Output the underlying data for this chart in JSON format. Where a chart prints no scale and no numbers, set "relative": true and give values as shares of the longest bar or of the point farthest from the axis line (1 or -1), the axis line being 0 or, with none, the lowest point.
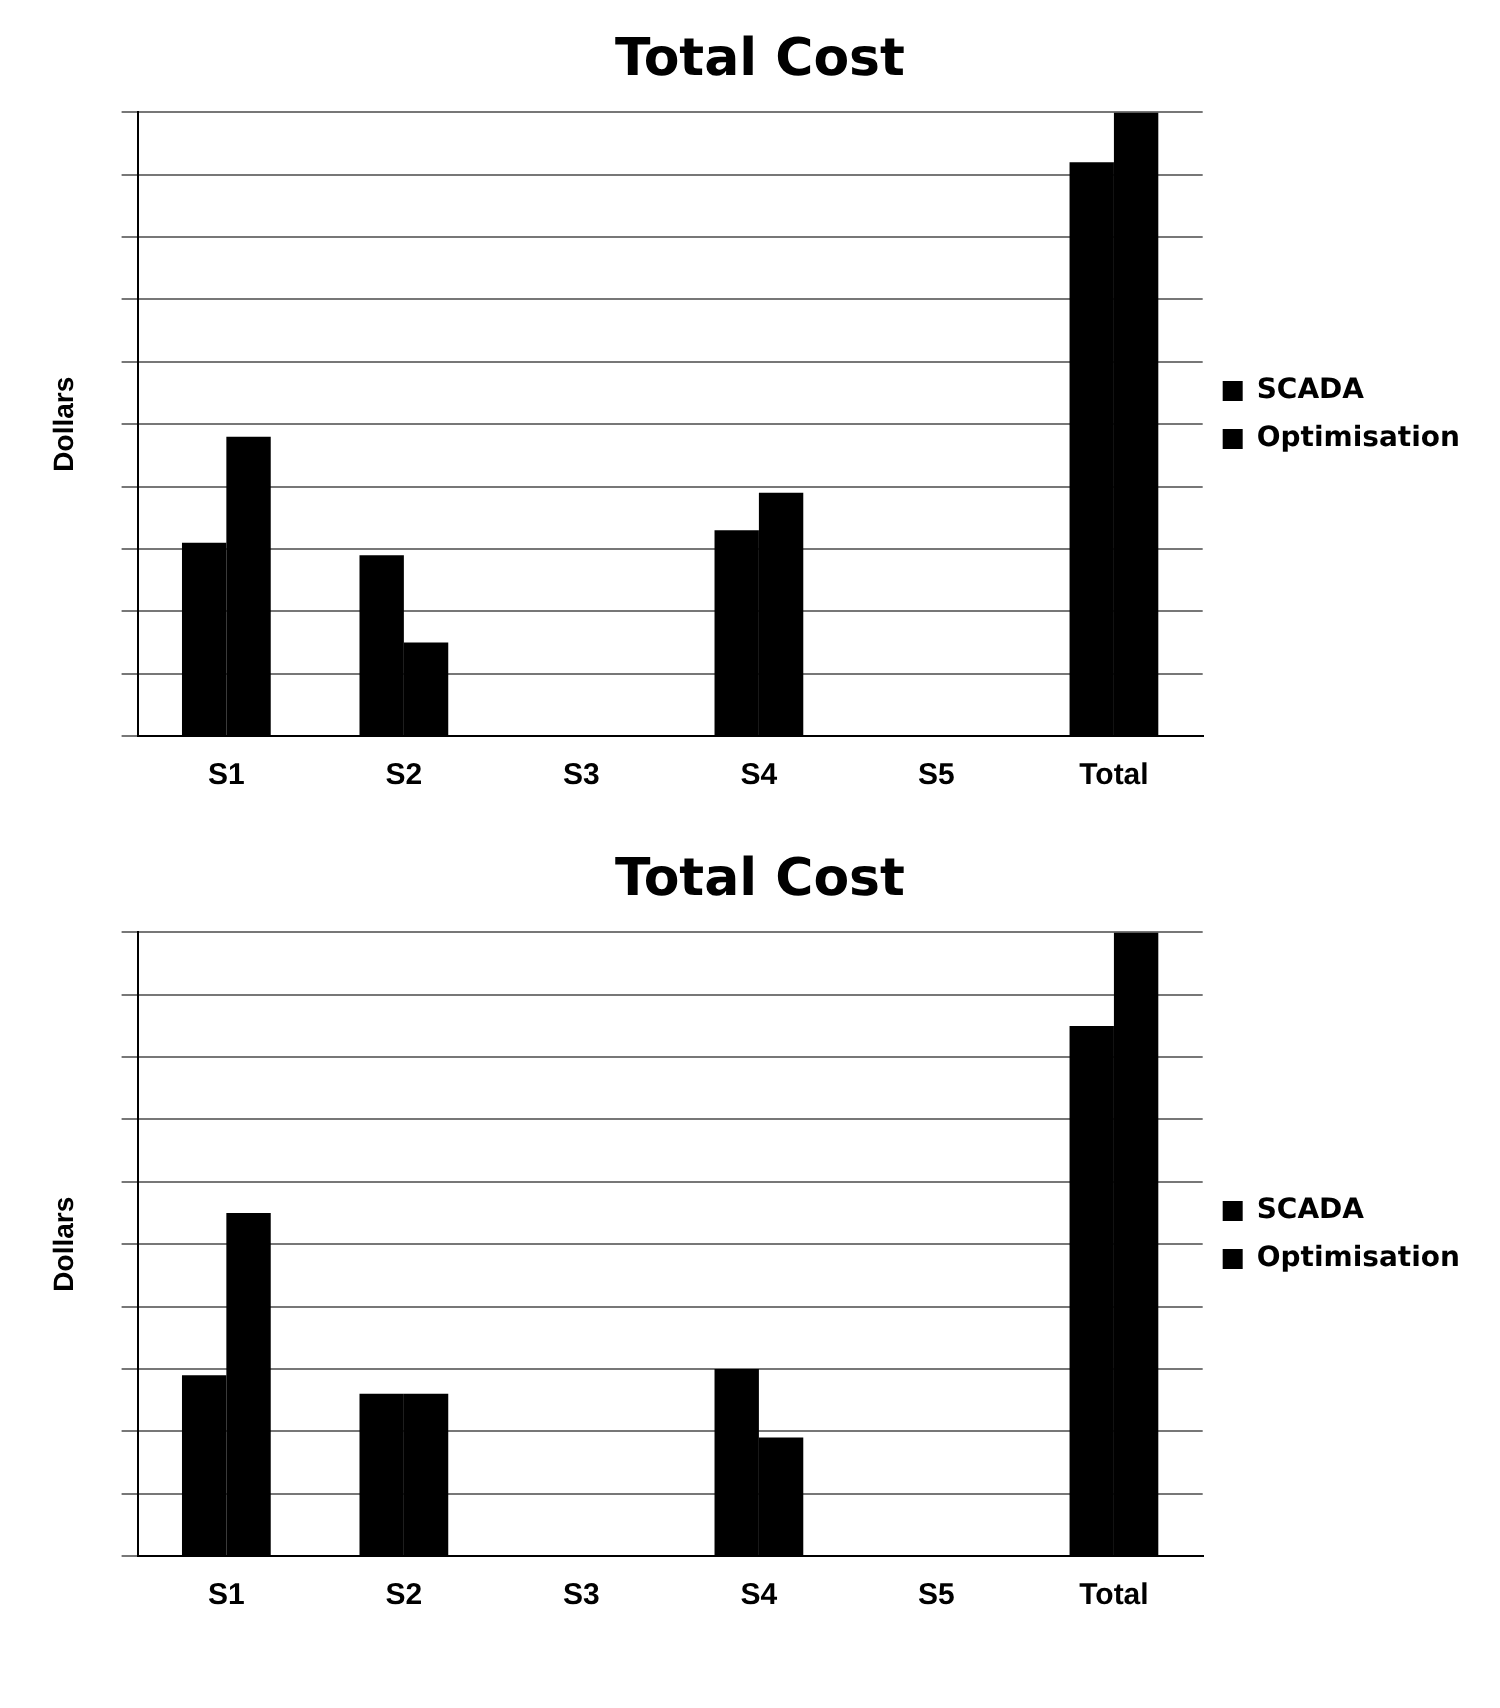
{
  "chart_data": [
    {
      "type": "bar",
      "title": "Total Cost",
      "ylabel": "Dollars",
      "categories": [
        "S1",
        "S2",
        "S3",
        "S4",
        "S5",
        "Total"
      ],
      "relative": true,
      "grid": "y",
      "legend": "right",
      "series": [
        {
          "name": "SCADA",
          "color": "#000000",
          "values": [
            0.31,
            0.29,
            null,
            0.33,
            null,
            0.92
          ]
        },
        {
          "name": "Optimisation",
          "color": "#000000",
          "values": [
            0.48,
            0.15,
            null,
            0.39,
            null,
            1
          ]
        }
      ]
    },
    {
      "type": "bar",
      "title": "Total Cost",
      "ylabel": "Dollars",
      "categories": [
        "S1",
        "S2",
        "S3",
        "S4",
        "S5",
        "Total"
      ],
      "relative": true,
      "grid": "y",
      "legend": "right",
      "series": [
        {
          "name": "SCADA",
          "color": "#000000",
          "values": [
            0.29,
            0.26,
            null,
            0.3,
            null,
            0.85
          ]
        },
        {
          "name": "Optimisation",
          "color": "#000000",
          "values": [
            0.55,
            0.26,
            null,
            0.19,
            null,
            1
          ]
        }
      ]
    }
  ]
}
